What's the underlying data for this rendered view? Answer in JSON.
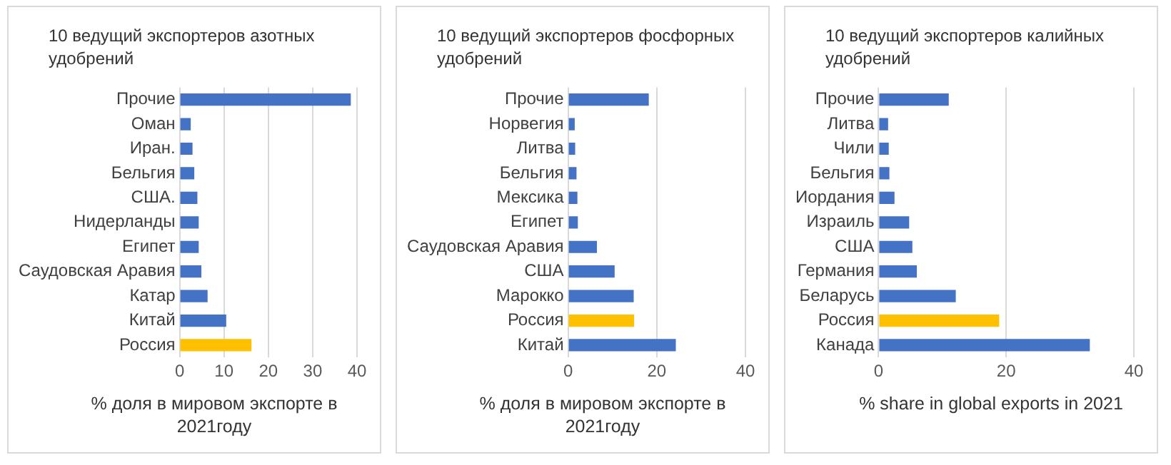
{
  "chart_data": [
    {
      "type": "bar",
      "orientation": "horizontal",
      "title": "10 ведущий экспортеров азотных удобрений",
      "xlabel": "% доля в мировом экспорте в 2021году",
      "categories": [
        "Прочие",
        "Оман",
        "Иран.",
        "Бельгия",
        "США.",
        "Нидерланды",
        "Египет",
        "Саудовская Аравия",
        "Катар",
        "Китай",
        "Россия"
      ],
      "values": [
        38.6,
        2.5,
        2.9,
        3.3,
        4.0,
        4.3,
        4.3,
        4.9,
        6.3,
        10.5,
        16.2
      ],
      "colors": [
        "#4472c4",
        "#4472c4",
        "#4472c4",
        "#4472c4",
        "#4472c4",
        "#4472c4",
        "#4472c4",
        "#4472c4",
        "#4472c4",
        "#4472c4",
        "#ffc000"
      ],
      "xlim": [
        0,
        40
      ],
      "xticks": [
        0,
        10,
        20,
        30,
        40
      ],
      "grid": "x",
      "legend": false
    },
    {
      "type": "bar",
      "orientation": "horizontal",
      "title": "10 ведущий экспортеров фосфорных удобрений",
      "xlabel": "% доля в мировом экспорте в 2021году",
      "categories": [
        "Прочие",
        "Норвегия",
        "Литва",
        "Бельгия",
        "Мексика",
        "Египет",
        "Саудовская Аравия",
        "США",
        "Марокко",
        "Россия",
        "Китай"
      ],
      "values": [
        18.2,
        1.5,
        1.6,
        1.9,
        2.1,
        2.2,
        6.5,
        10.5,
        14.8,
        14.9,
        24.3
      ],
      "colors": [
        "#4472c4",
        "#4472c4",
        "#4472c4",
        "#4472c4",
        "#4472c4",
        "#4472c4",
        "#4472c4",
        "#4472c4",
        "#4472c4",
        "#ffc000",
        "#4472c4"
      ],
      "xlim": [
        0,
        40
      ],
      "xticks": [
        0,
        20,
        40
      ],
      "grid": "x",
      "legend": false
    },
    {
      "type": "bar",
      "orientation": "horizontal",
      "title": "10 ведущий экспортеров калийных удобрений",
      "xlabel": "% share in global exports in 2021",
      "categories": [
        "Прочие",
        "Литва",
        "Чили",
        "Бельгия",
        "Иордания",
        "Израиль",
        "США",
        "Германия",
        "Беларусь",
        "Россия",
        "Канада"
      ],
      "values": [
        11.0,
        1.5,
        1.6,
        1.7,
        2.5,
        4.8,
        5.3,
        6.0,
        12.1,
        18.9,
        33.1
      ],
      "colors": [
        "#4472c4",
        "#4472c4",
        "#4472c4",
        "#4472c4",
        "#4472c4",
        "#4472c4",
        "#4472c4",
        "#4472c4",
        "#4472c4",
        "#ffc000",
        "#4472c4"
      ],
      "xlim": [
        0,
        40
      ],
      "xticks": [
        0,
        20,
        40
      ],
      "grid": "x",
      "legend": false
    }
  ]
}
